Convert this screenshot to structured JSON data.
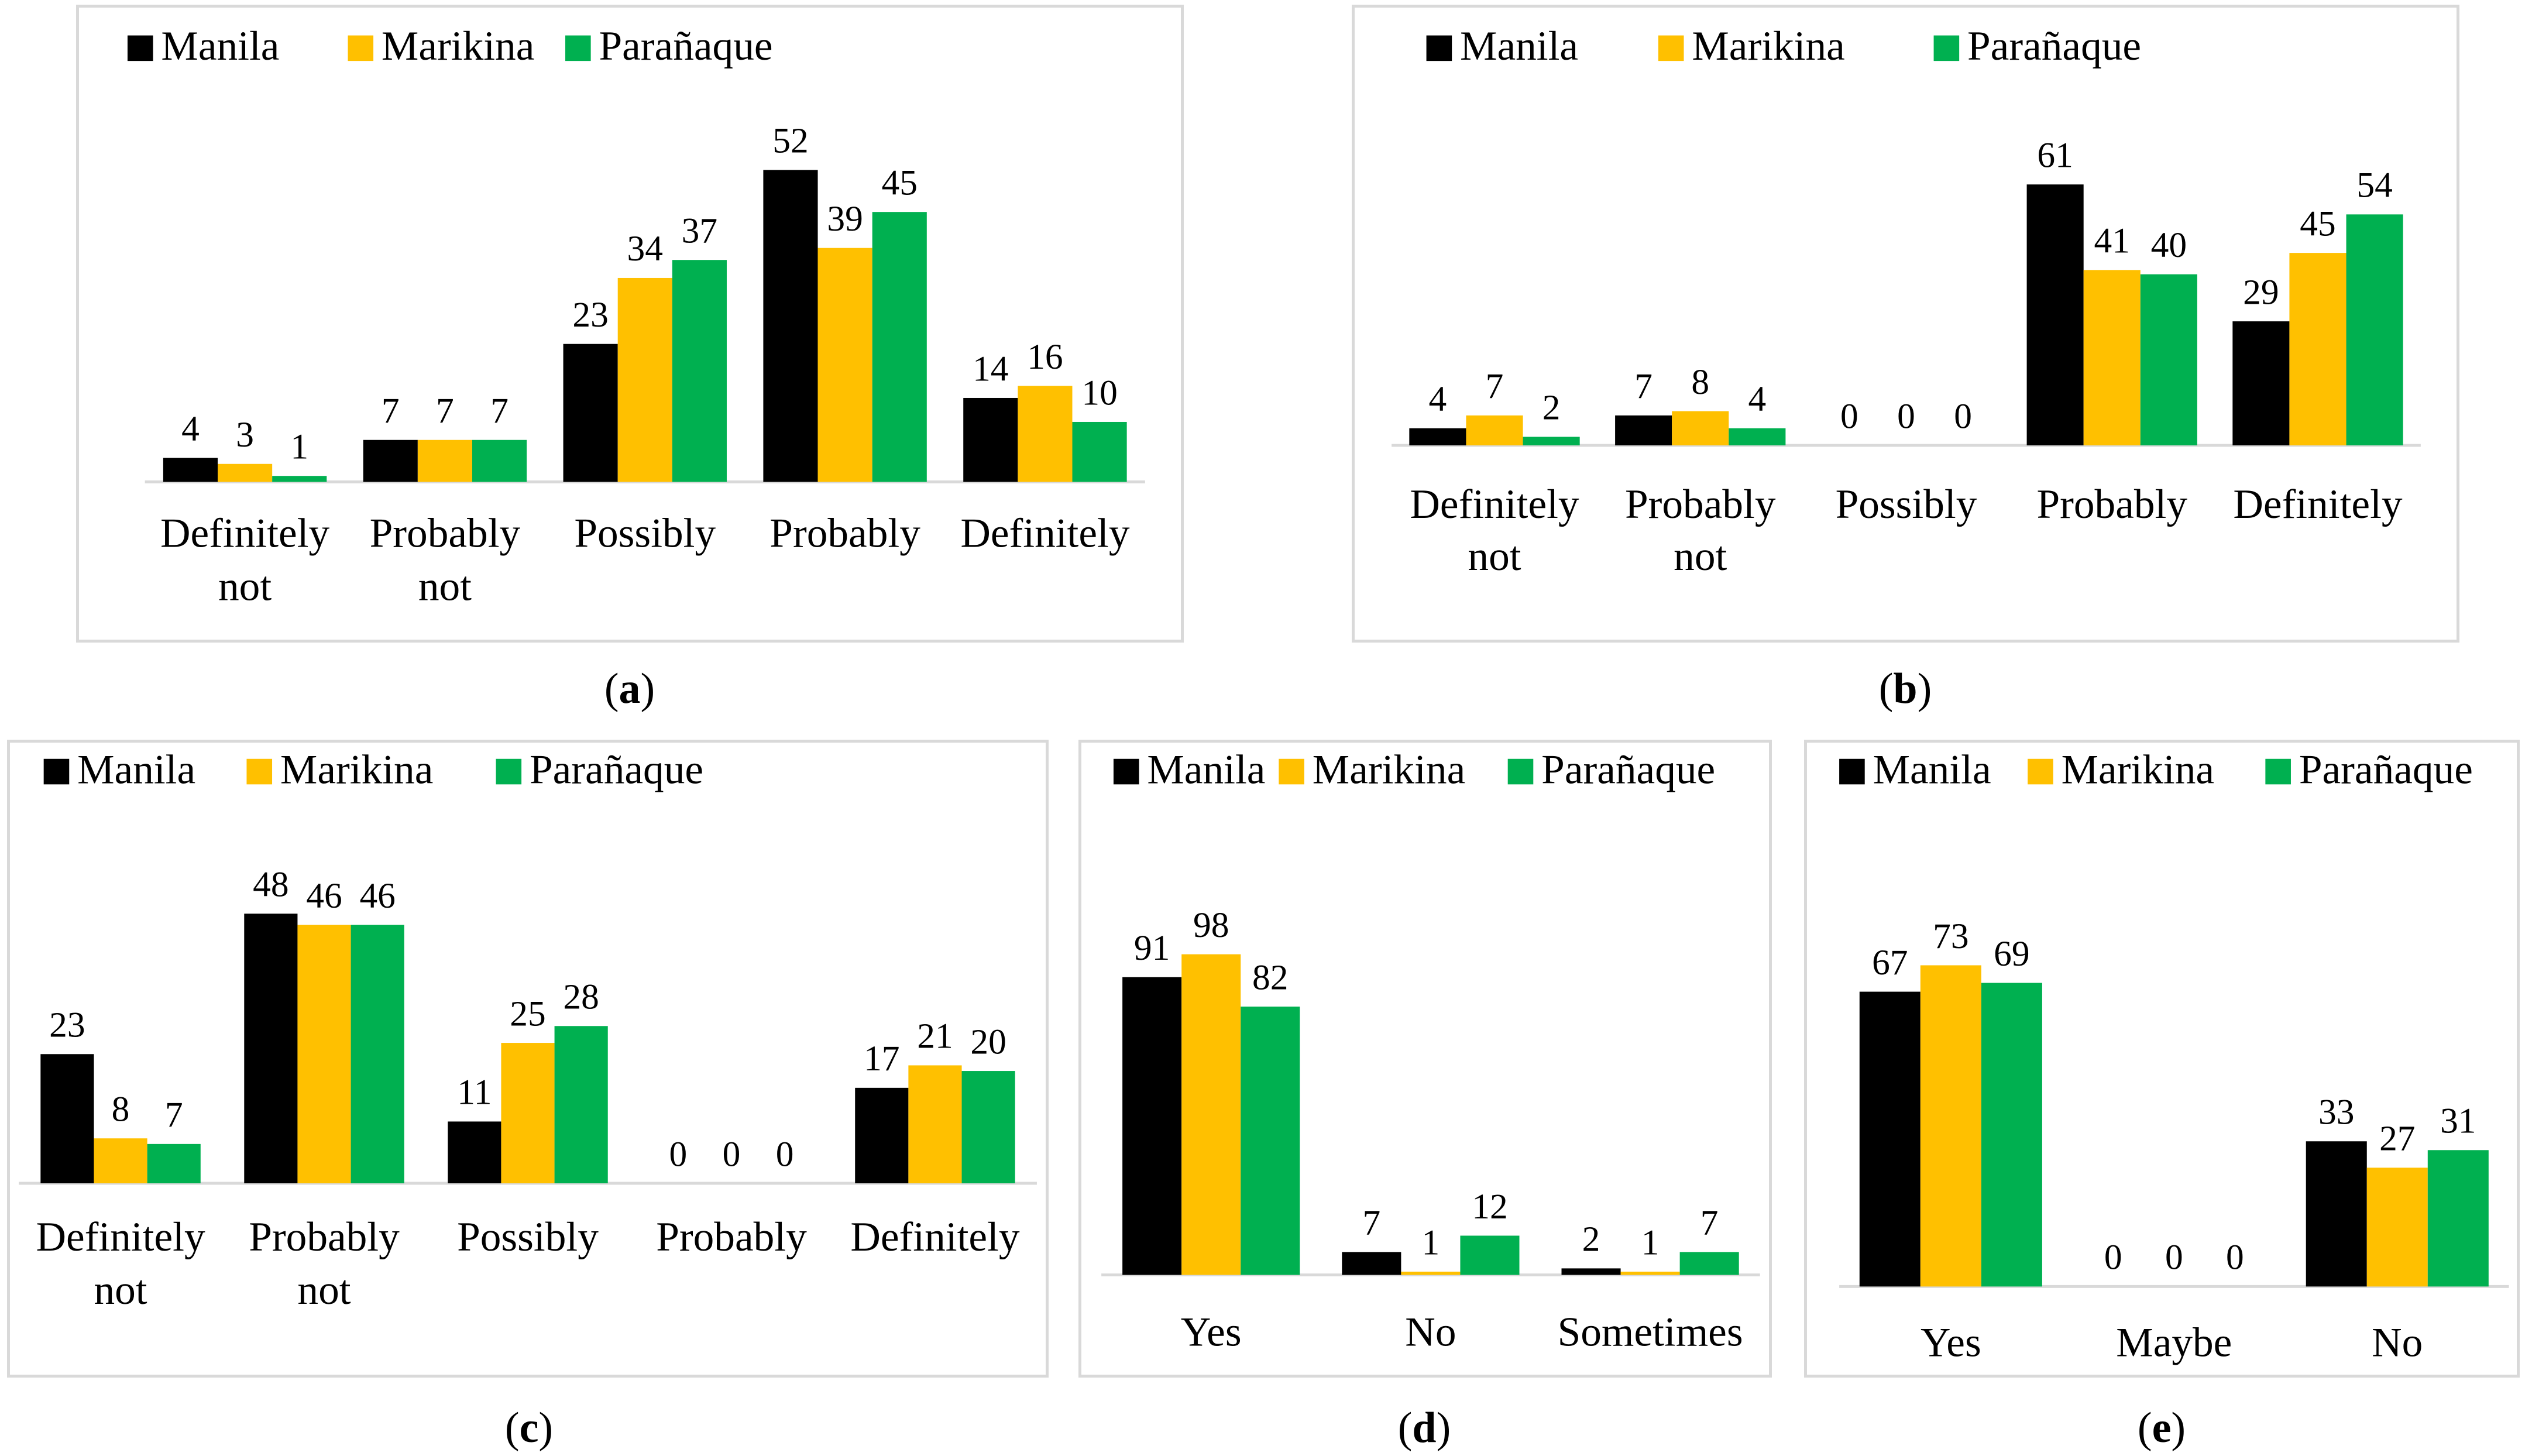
{
  "colors": {
    "Manila": "#000000",
    "Marikina": "#ffc000",
    "Parañaque": "#00b050",
    "axis": "#d9d9d9",
    "border": "#d9d9d9"
  },
  "chart_data": [
    {
      "id": "a",
      "type": "bar",
      "caption": "a",
      "legend": [
        "Manila",
        "Marikina",
        "Parañaque"
      ],
      "categories": [
        [
          "Definitely",
          "not"
        ],
        [
          "Probably",
          "not"
        ],
        [
          "Possibly"
        ],
        [
          "Probably"
        ],
        [
          "Definitely"
        ]
      ],
      "series": [
        {
          "name": "Manila",
          "values": [
            4,
            7,
            23,
            52,
            14
          ]
        },
        {
          "name": "Marikina",
          "values": [
            3,
            7,
            34,
            39,
            16
          ]
        },
        {
          "name": "Parañaque",
          "values": [
            1,
            7,
            37,
            45,
            10
          ]
        }
      ],
      "ylim": [
        0,
        52
      ]
    },
    {
      "id": "b",
      "type": "bar",
      "caption": "b",
      "legend": [
        "Manila",
        "Marikina",
        "Parañaque"
      ],
      "categories": [
        [
          "Definitely",
          "not"
        ],
        [
          "Probably",
          "not"
        ],
        [
          "Possibly"
        ],
        [
          "Probably"
        ],
        [
          "Definitely"
        ]
      ],
      "series": [
        {
          "name": "Manila",
          "values": [
            4,
            7,
            0,
            61,
            29
          ]
        },
        {
          "name": "Marikina",
          "values": [
            7,
            8,
            0,
            41,
            45
          ]
        },
        {
          "name": "Parañaque",
          "values": [
            2,
            4,
            0,
            40,
            54
          ]
        }
      ],
      "ylim": [
        0,
        61
      ]
    },
    {
      "id": "c",
      "type": "bar",
      "caption": "c",
      "legend": [
        "Manila",
        "Marikina",
        "Parañaque"
      ],
      "categories": [
        [
          "Definitely",
          "not"
        ],
        [
          "Probably",
          "not"
        ],
        [
          "Possibly"
        ],
        [
          "Probably"
        ],
        [
          "Definitely"
        ]
      ],
      "series": [
        {
          "name": "Manila",
          "values": [
            23,
            48,
            11,
            0,
            17
          ]
        },
        {
          "name": "Marikina",
          "values": [
            8,
            46,
            25,
            0,
            21
          ]
        },
        {
          "name": "Parañaque",
          "values": [
            7,
            46,
            28,
            0,
            20
          ]
        }
      ],
      "ylim": [
        0,
        48
      ]
    },
    {
      "id": "d",
      "type": "bar",
      "caption": "d",
      "legend": [
        "Manila",
        "Marikina",
        "Parañaque"
      ],
      "categories": [
        [
          "Yes"
        ],
        [
          "No"
        ],
        [
          "Sometimes"
        ]
      ],
      "series": [
        {
          "name": "Manila",
          "values": [
            91,
            7,
            2
          ]
        },
        {
          "name": "Marikina",
          "values": [
            98,
            1,
            1
          ]
        },
        {
          "name": "Parañaque",
          "values": [
            82,
            12,
            7
          ]
        }
      ],
      "ylim": [
        0,
        98
      ]
    },
    {
      "id": "e",
      "type": "bar",
      "caption": "e",
      "legend": [
        "Manila",
        "Marikina",
        "Parañaque"
      ],
      "categories": [
        [
          "Yes"
        ],
        [
          "Maybe"
        ],
        [
          "No"
        ]
      ],
      "series": [
        {
          "name": "Manila",
          "values": [
            67,
            0,
            33
          ]
        },
        {
          "name": "Marikina",
          "values": [
            73,
            0,
            27
          ]
        },
        {
          "name": "Parañaque",
          "values": [
            69,
            0,
            31
          ]
        }
      ],
      "ylim": [
        0,
        73
      ]
    }
  ]
}
